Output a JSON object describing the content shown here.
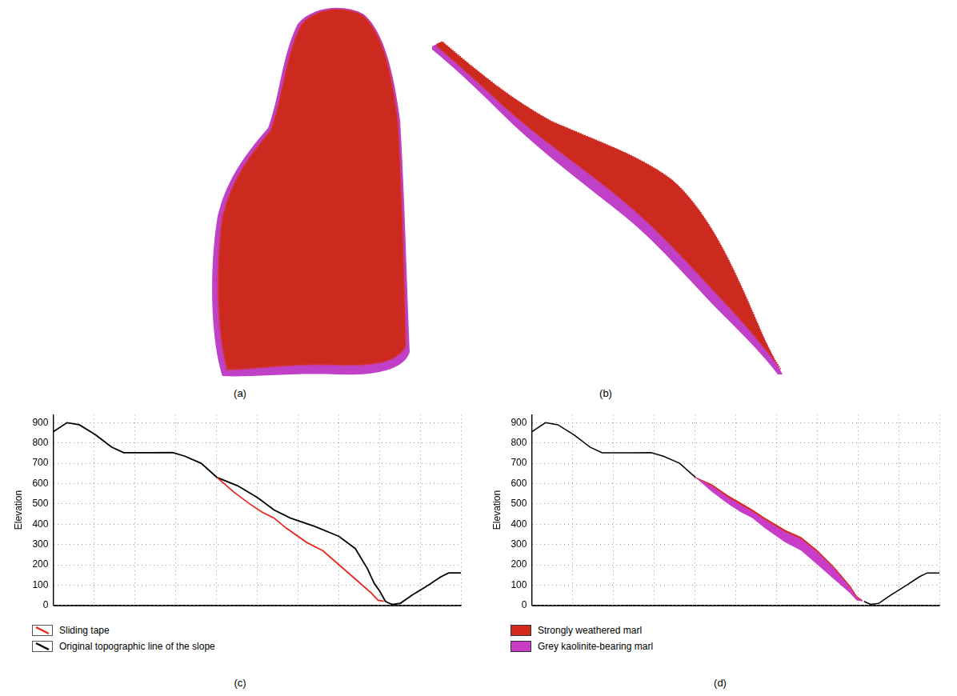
{
  "panels": [
    {
      "label": "(a)"
    },
    {
      "label": "(b)"
    }
  ],
  "chart_data": [
    {
      "panel": "(c)",
      "type": "line",
      "y_label": "Elevation",
      "xlim": [
        0,
        1000
      ],
      "xticks": [
        0,
        100,
        200,
        300,
        400,
        500,
        600,
        700,
        800,
        900,
        1000
      ],
      "ylim": [
        0,
        940
      ],
      "yticks": [
        0,
        100,
        200,
        300,
        400,
        500,
        600,
        700,
        800,
        900
      ],
      "grid": true,
      "tick_labels": "y",
      "legend": "bottom",
      "series": [
        {
          "name": "Sliding tape",
          "color": "#e8281e",
          "type": "line",
          "x": [
            402,
            442,
            482,
            512,
            542,
            572,
            622,
            661,
            701,
            741,
            781,
            797,
            811
          ],
          "values": [
            630,
            560,
            500,
            460,
            430,
            380,
            310,
            270,
            200,
            130,
            60,
            25,
            20
          ]
        },
        {
          "name": "Original topographic line of the slope",
          "color": "#000000",
          "type": "line",
          "x": [
            0,
            34,
            64,
            104,
            143,
            173,
            243,
            293,
            323,
            363,
            402,
            452,
            502,
            542,
            582,
            641,
            701,
            741,
            771,
            787,
            801,
            815,
            831,
            851,
            880,
            920,
            950,
            970,
            1000
          ],
          "values": [
            855,
            900,
            890,
            840,
            780,
            752,
            752,
            753,
            735,
            700,
            630,
            590,
            530,
            470,
            430,
            390,
            340,
            280,
            180,
            110,
            70,
            20,
            5,
            10,
            50,
            100,
            140,
            160,
            160
          ]
        }
      ]
    },
    {
      "panel": "(d)",
      "type": "line",
      "y_label": "Elevation",
      "xlim": [
        0,
        1000
      ],
      "xticks": [
        0,
        100,
        200,
        300,
        400,
        500,
        600,
        700,
        800,
        900,
        1000
      ],
      "ylim": [
        0,
        940
      ],
      "yticks": [
        0,
        100,
        200,
        300,
        400,
        500,
        600,
        700,
        800,
        900
      ],
      "grid": true,
      "tick_labels": "y",
      "legend": "bottom",
      "x": [
        402,
        442,
        482,
        512,
        542,
        572,
        622,
        661,
        701,
        741,
        781,
        797,
        811
      ],
      "base": [
        630,
        560,
        500,
        460,
        430,
        380,
        310,
        270,
        200,
        130,
        60,
        25,
        20
      ],
      "series": [
        {
          "name": "Strongly weathered marl",
          "color": "#d42a1e",
          "type": "area",
          "values": [
            630,
            595,
            540,
            505,
            470,
            430,
            370,
            335,
            270,
            190,
            95,
            45,
            25
          ]
        },
        {
          "name": "Grey kaolinite-bearing marl",
          "color": "#c83cc8",
          "type": "area",
          "values": [
            630,
            588,
            532,
            497,
            462,
            422,
            362,
            327,
            262,
            183,
            88,
            40,
            22
          ]
        }
      ],
      "topography": {
        "color": "#000000",
        "x": [
          0,
          34,
          64,
          104,
          143,
          173,
          243,
          293,
          323,
          363,
          402,
          452,
          502,
          542,
          582,
          641,
          701,
          741,
          771,
          787,
          801,
          815,
          831,
          851,
          880,
          920,
          950,
          970,
          1000
        ],
        "values": [
          855,
          900,
          890,
          840,
          780,
          752,
          752,
          753,
          735,
          700,
          630,
          null,
          null,
          null,
          null,
          null,
          null,
          null,
          null,
          null,
          null,
          20,
          5,
          10,
          50,
          100,
          140,
          160,
          160
        ]
      }
    }
  ]
}
